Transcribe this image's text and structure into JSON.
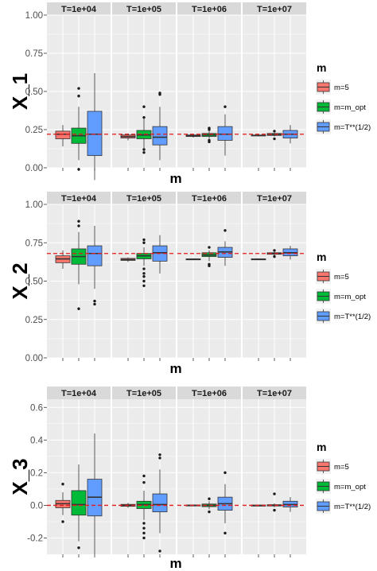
{
  "chart_data": [
    {
      "type": "box",
      "ylabel": "X_1",
      "xlabel": "m",
      "ylim": [
        0,
        1
      ],
      "yticks": [
        0.0,
        0.25,
        0.5,
        0.75,
        1.0
      ],
      "ytick_labels": [
        "0.00",
        "0.25",
        "0.50",
        "0.75",
        "1.00"
      ],
      "reference_line": 0.22,
      "facets": [
        {
          "title": "T=1e+04",
          "boxes": [
            {
              "series": "m=5",
              "min": 0.14,
              "q1": 0.19,
              "median": 0.22,
              "q3": 0.24,
              "max": 0.28,
              "outliers": []
            },
            {
              "series": "m=m_opt",
              "min": 0.05,
              "q1": 0.16,
              "median": 0.21,
              "q3": 0.26,
              "max": 0.4,
              "outliers": [
                0.52,
                0.47,
                -0.01
              ]
            },
            {
              "series": "m=T**(1/2)",
              "min": -0.08,
              "q1": 0.08,
              "median": 0.22,
              "q3": 0.37,
              "max": 0.62,
              "outliers": []
            }
          ]
        },
        {
          "title": "T=1e+05",
          "boxes": [
            {
              "series": "m=5",
              "min": 0.18,
              "q1": 0.195,
              "median": 0.205,
              "q3": 0.215,
              "max": 0.225,
              "outliers": []
            },
            {
              "series": "m=m_opt",
              "min": 0.13,
              "q1": 0.19,
              "median": 0.215,
              "q3": 0.245,
              "max": 0.32,
              "outliers": [
                0.4,
                0.33,
                0.12,
                0.1
              ]
            },
            {
              "series": "m=T**(1/2)",
              "min": 0.05,
              "q1": 0.15,
              "median": 0.2,
              "q3": 0.27,
              "max": 0.4,
              "outliers": [
                0.49,
                0.48
              ]
            }
          ]
        },
        {
          "title": "T=1e+06",
          "boxes": [
            {
              "series": "m=5",
              "min": 0.198,
              "q1": 0.205,
              "median": 0.21,
              "q3": 0.215,
              "max": 0.22,
              "outliers": []
            },
            {
              "series": "m=m_opt",
              "min": 0.19,
              "q1": 0.205,
              "median": 0.215,
              "q3": 0.225,
              "max": 0.24,
              "outliers": [
                0.26,
                0.25,
                0.18,
                0.17
              ]
            },
            {
              "series": "m=T**(1/2)",
              "min": 0.08,
              "q1": 0.18,
              "median": 0.22,
              "q3": 0.27,
              "max": 0.35,
              "outliers": [
                0.4
              ]
            }
          ]
        },
        {
          "title": "T=1e+07",
          "boxes": [
            {
              "series": "m=5",
              "min": 0.205,
              "q1": 0.209,
              "median": 0.212,
              "q3": 0.215,
              "max": 0.218,
              "outliers": []
            },
            {
              "series": "m=m_opt",
              "min": 0.205,
              "q1": 0.212,
              "median": 0.218,
              "q3": 0.225,
              "max": 0.23,
              "outliers": [
                0.24,
                0.19
              ]
            },
            {
              "series": "m=T**(1/2)",
              "min": 0.16,
              "q1": 0.195,
              "median": 0.22,
              "q3": 0.245,
              "max": 0.28,
              "outliers": []
            }
          ]
        }
      ]
    },
    {
      "type": "box",
      "ylabel": "X_2",
      "xlabel": "m",
      "ylim": [
        0,
        1
      ],
      "yticks": [
        0.0,
        0.25,
        0.5,
        0.75,
        1.0
      ],
      "ytick_labels": [
        "0.00",
        "0.25",
        "0.50",
        "0.75",
        "1.00"
      ],
      "reference_line": 0.68,
      "facets": [
        {
          "title": "T=1e+04",
          "boxes": [
            {
              "series": "m=5",
              "min": 0.58,
              "q1": 0.62,
              "median": 0.645,
              "q3": 0.665,
              "max": 0.7,
              "outliers": []
            },
            {
              "series": "m=m_opt",
              "min": 0.48,
              "q1": 0.61,
              "median": 0.66,
              "q3": 0.71,
              "max": 0.82,
              "outliers": [
                0.89,
                0.86,
                0.32
              ]
            },
            {
              "series": "m=T**(1/2)",
              "min": 0.45,
              "q1": 0.6,
              "median": 0.68,
              "q3": 0.73,
              "max": 0.86,
              "outliers": [
                0.37,
                0.35
              ]
            }
          ]
        },
        {
          "title": "T=1e+05",
          "boxes": [
            {
              "series": "m=5",
              "min": 0.625,
              "q1": 0.635,
              "median": 0.64,
              "q3": 0.648,
              "max": 0.655,
              "outliers": []
            },
            {
              "series": "m=m_opt",
              "min": 0.6,
              "q1": 0.645,
              "median": 0.665,
              "q3": 0.68,
              "max": 0.72,
              "outliers": [
                0.77,
                0.75,
                0.58,
                0.55,
                0.53,
                0.5,
                0.47
              ]
            },
            {
              "series": "m=T**(1/2)",
              "min": 0.55,
              "q1": 0.63,
              "median": 0.685,
              "q3": 0.73,
              "max": 0.8,
              "outliers": []
            }
          ]
        },
        {
          "title": "T=1e+06",
          "boxes": [
            {
              "series": "m=5",
              "min": 0.638,
              "q1": 0.641,
              "median": 0.643,
              "q3": 0.645,
              "max": 0.648,
              "outliers": []
            },
            {
              "series": "m=m_opt",
              "min": 0.63,
              "q1": 0.66,
              "median": 0.67,
              "q3": 0.685,
              "max": 0.7,
              "outliers": [
                0.61,
                0.6,
                0.72
              ]
            },
            {
              "series": "m=T**(1/2)",
              "min": 0.6,
              "q1": 0.655,
              "median": 0.69,
              "q3": 0.72,
              "max": 0.76,
              "outliers": [
                0.83
              ]
            }
          ]
        },
        {
          "title": "T=1e+07",
          "boxes": [
            {
              "series": "m=5",
              "min": 0.638,
              "q1": 0.641,
              "median": 0.643,
              "q3": 0.645,
              "max": 0.648,
              "outliers": []
            },
            {
              "series": "m=m_opt",
              "min": 0.665,
              "q1": 0.675,
              "median": 0.68,
              "q3": 0.685,
              "max": 0.69,
              "outliers": [
                0.7,
                0.66
              ]
            },
            {
              "series": "m=T**(1/2)",
              "min": 0.64,
              "q1": 0.665,
              "median": 0.685,
              "q3": 0.71,
              "max": 0.73,
              "outliers": []
            }
          ]
        }
      ]
    },
    {
      "type": "box",
      "ylabel": "X_3",
      "xlabel": "m",
      "ylim": [
        -0.3,
        0.65
      ],
      "yticks": [
        -0.2,
        0.0,
        0.2,
        0.4,
        0.6
      ],
      "ytick_labels": [
        "-0.2",
        "0.0",
        "0.2",
        "0.4",
        "0.6"
      ],
      "reference_line": 0.0,
      "facets": [
        {
          "title": "T=1e+04",
          "boxes": [
            {
              "series": "m=5",
              "min": -0.06,
              "q1": -0.015,
              "median": 0.01,
              "q3": 0.03,
              "max": 0.08,
              "outliers": [
                0.13,
                -0.1
              ]
            },
            {
              "series": "m=m_opt",
              "min": -0.22,
              "q1": -0.06,
              "median": 0.005,
              "q3": 0.09,
              "max": 0.25,
              "outliers": [
                -0.26
              ]
            },
            {
              "series": "m=T**(1/2)",
              "min": -0.3,
              "q1": -0.065,
              "median": 0.05,
              "q3": 0.16,
              "max": 0.44,
              "outliers": []
            }
          ]
        },
        {
          "title": "T=1e+05",
          "boxes": [
            {
              "series": "m=5",
              "min": -0.015,
              "q1": -0.006,
              "median": 0.0,
              "q3": 0.006,
              "max": 0.015,
              "outliers": []
            },
            {
              "series": "m=m_opt",
              "min": -0.09,
              "q1": -0.02,
              "median": 0.005,
              "q3": 0.025,
              "max": 0.09,
              "outliers": [
                0.18,
                0.14,
                -0.11,
                -0.14,
                -0.17,
                -0.2
              ]
            },
            {
              "series": "m=T**(1/2)",
              "min": -0.17,
              "q1": -0.04,
              "median": 0.005,
              "q3": 0.07,
              "max": 0.22,
              "outliers": [
                0.31,
                0.29,
                -0.28
              ]
            }
          ]
        },
        {
          "title": "T=1e+06",
          "boxes": [
            {
              "series": "m=5",
              "min": -0.004,
              "q1": -0.002,
              "median": 0.0,
              "q3": 0.002,
              "max": 0.004,
              "outliers": []
            },
            {
              "series": "m=m_opt",
              "min": -0.025,
              "q1": -0.008,
              "median": 0.0,
              "q3": 0.008,
              "max": 0.025,
              "outliers": [
                0.04,
                -0.04
              ]
            },
            {
              "series": "m=T**(1/2)",
              "min": -0.11,
              "q1": -0.03,
              "median": 0.01,
              "q3": 0.05,
              "max": 0.13,
              "outliers": [
                0.2,
                -0.17
              ]
            }
          ]
        },
        {
          "title": "T=1e+07",
          "boxes": [
            {
              "series": "m=5",
              "min": -0.002,
              "q1": -0.001,
              "median": 0.0,
              "q3": 0.001,
              "max": 0.002,
              "outliers": []
            },
            {
              "series": "m=m_opt",
              "min": -0.012,
              "q1": -0.004,
              "median": 0.0,
              "q3": 0.004,
              "max": 0.012,
              "outliers": [
                0.07,
                -0.03
              ]
            },
            {
              "series": "m=T**(1/2)",
              "min": -0.04,
              "q1": -0.01,
              "median": 0.005,
              "q3": 0.025,
              "max": 0.05,
              "outliers": []
            }
          ]
        }
      ]
    }
  ],
  "legend": {
    "title": "m",
    "entries": [
      {
        "label": "m=5",
        "color": "#F8766D"
      },
      {
        "label": "m=m_opt",
        "color": "#00BA38"
      },
      {
        "label": "m=T**(1/2)",
        "color": "#619CFF"
      }
    ]
  },
  "colors": {
    "panel_bg": "#EBEBEB",
    "strip_bg": "#D9D9D9",
    "grid": "#FFFFFF",
    "reference_line": "#E41A1C",
    "median_line": "#333333"
  }
}
